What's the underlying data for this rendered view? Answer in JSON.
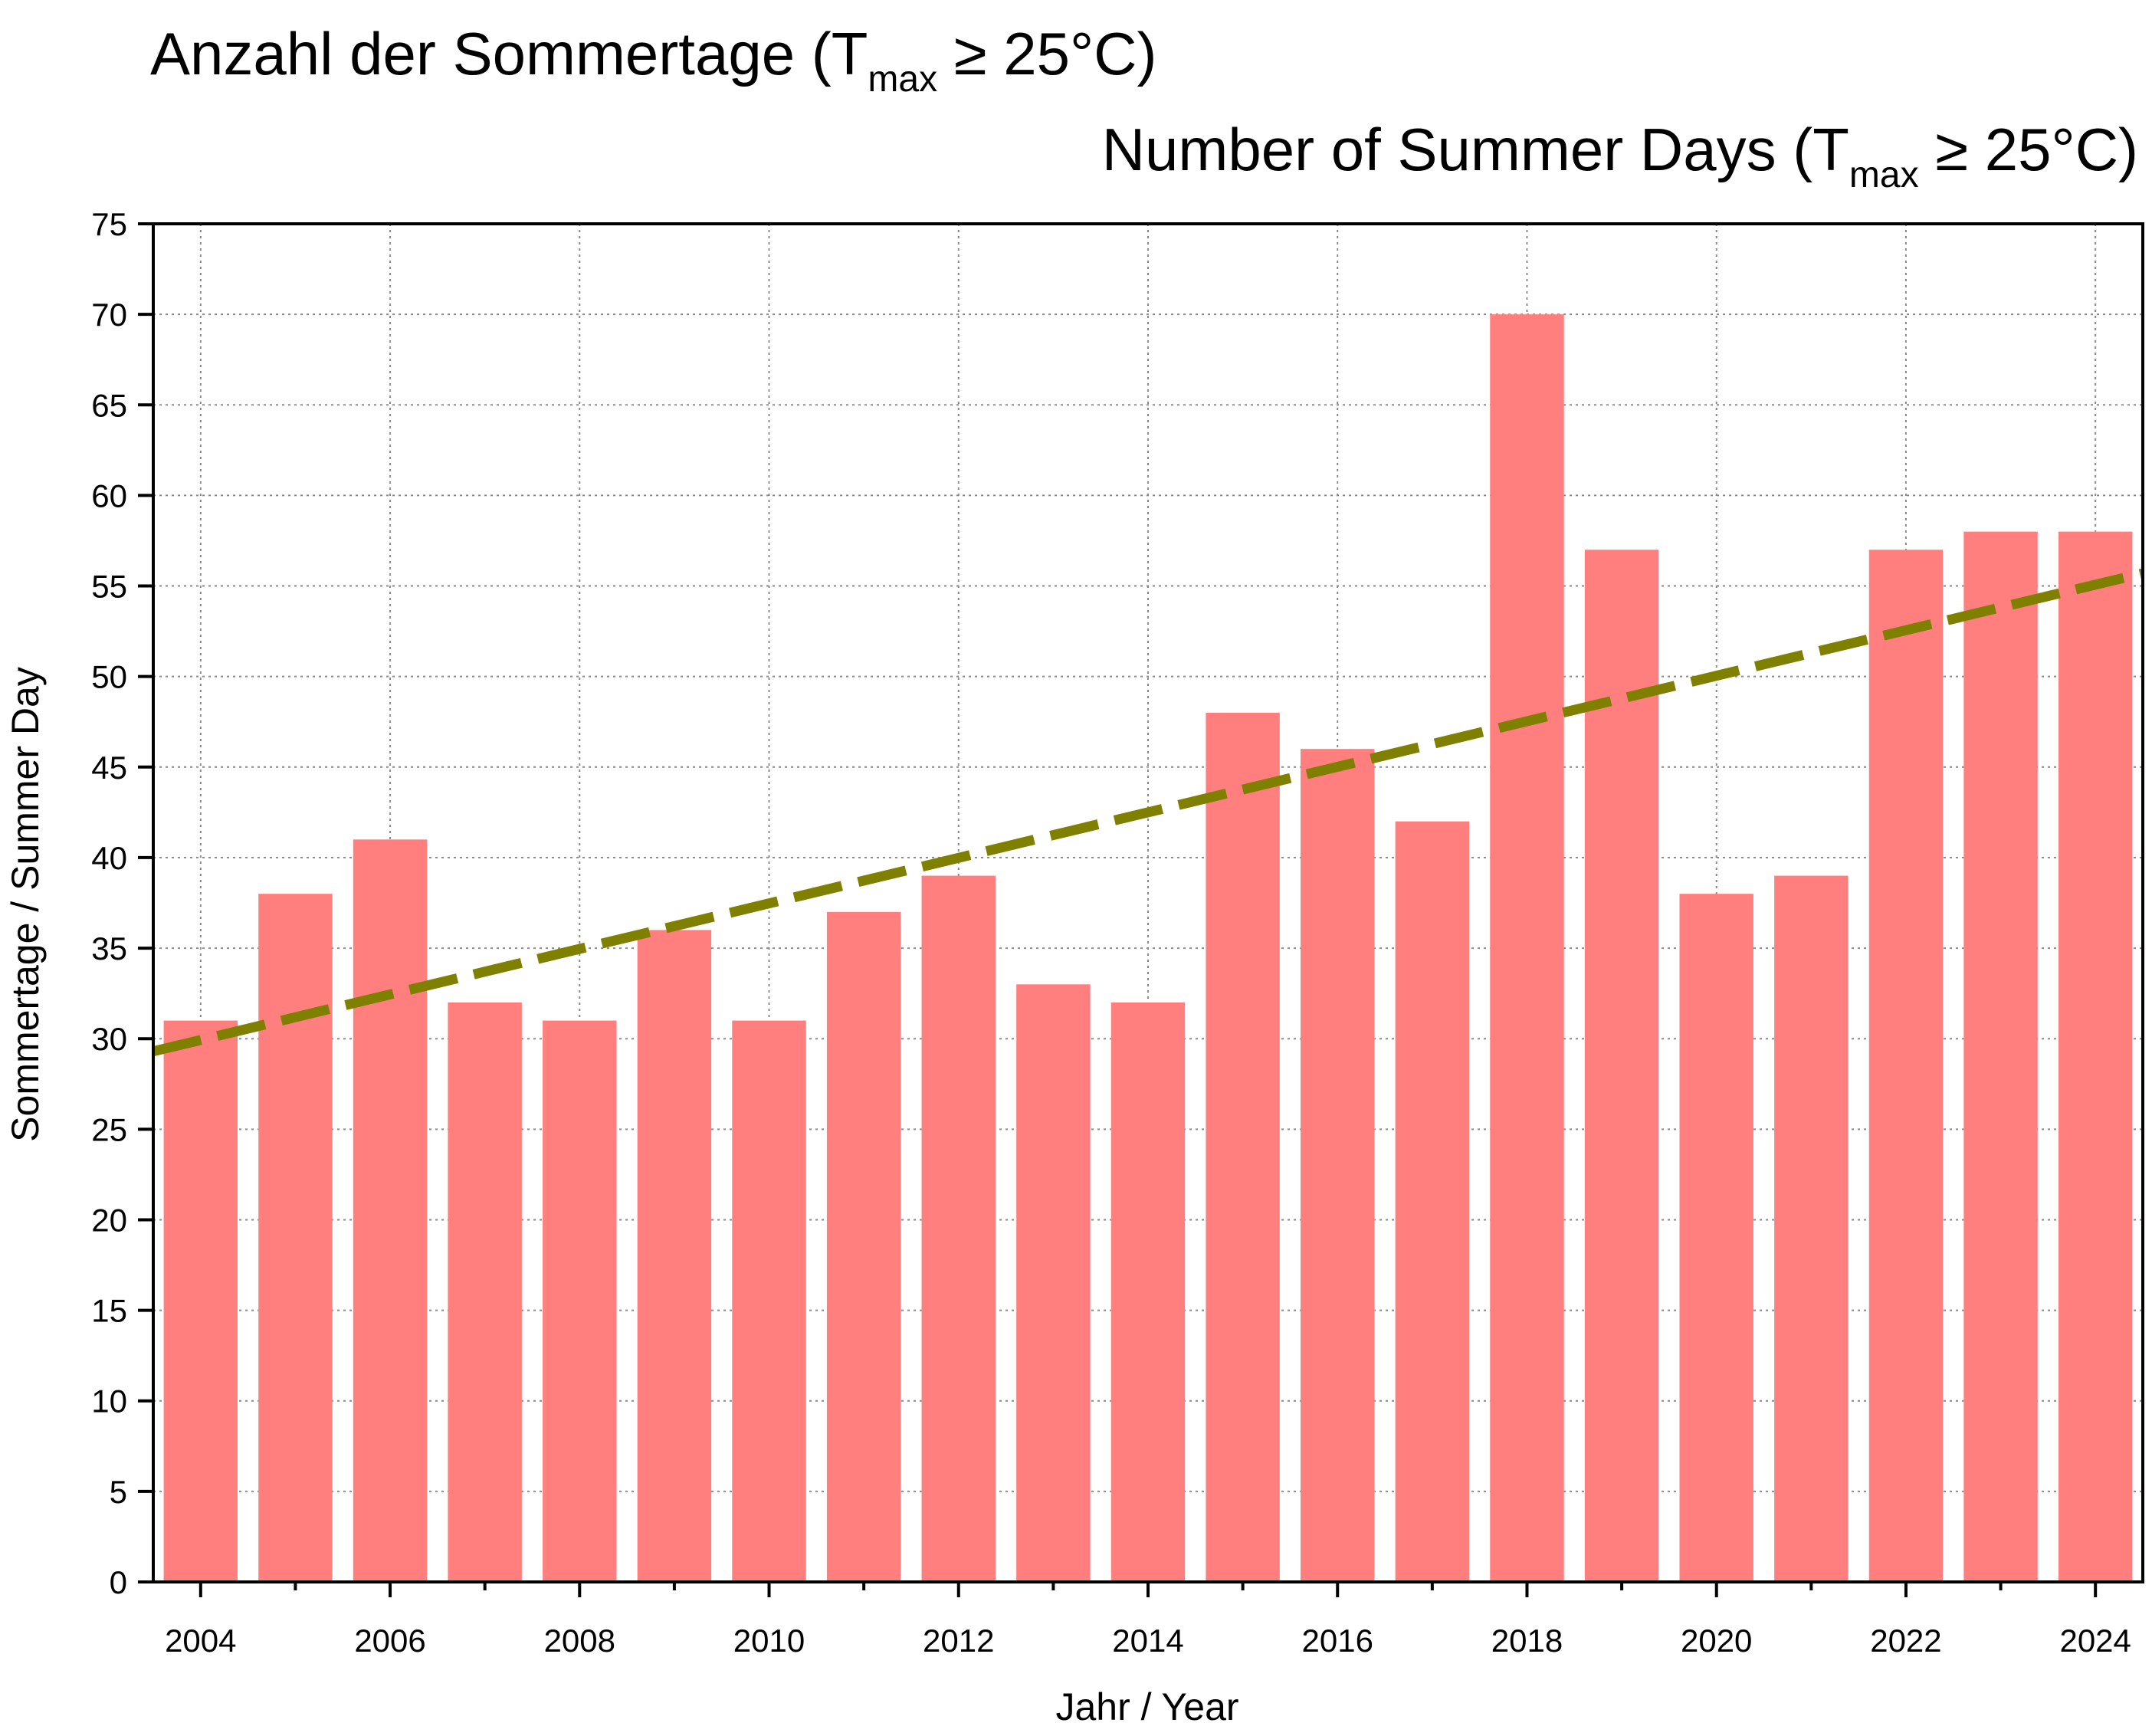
{
  "titles": {
    "de": {
      "main": "Anzahl der Sommertage (T",
      "sub": "max",
      "post": " ≥ 25°C)"
    },
    "en": {
      "main": "Number of Summer Days (T",
      "sub": "max",
      "post": " ≥ 25°C)"
    }
  },
  "chart_data": {
    "type": "bar",
    "xlabel": "Jahr / Year",
    "ylabel": "Sommertage / Summer Day",
    "ylim": [
      0,
      75
    ],
    "yticks": [
      0,
      5,
      10,
      15,
      20,
      25,
      30,
      35,
      40,
      45,
      50,
      55,
      60,
      65,
      70,
      75
    ],
    "xticks": [
      "2004",
      "2006",
      "2008",
      "2010",
      "2012",
      "2014",
      "2016",
      "2018",
      "2020",
      "2022",
      "2024"
    ],
    "categories": [
      "2004",
      "2005",
      "2006",
      "2007",
      "2008",
      "2009",
      "2010",
      "2011",
      "2012",
      "2013",
      "2014",
      "2015",
      "2016",
      "2017",
      "2018",
      "2019",
      "2020",
      "2021",
      "2022",
      "2023",
      "2024"
    ],
    "values": [
      31,
      38,
      41,
      32,
      31,
      36,
      31,
      37,
      39,
      33,
      32,
      48,
      46,
      42,
      70,
      57,
      38,
      39,
      57,
      58,
      58
    ],
    "trend": {
      "style": "dashed",
      "x": [
        "2003.5",
        "2024.5"
      ],
      "y": [
        29.3,
        55.7
      ]
    },
    "grid": true,
    "colors": {
      "bar": "#ff7f7f",
      "trend": "#808000",
      "grid": "#8a8a8a",
      "axis": "#000000"
    }
  }
}
